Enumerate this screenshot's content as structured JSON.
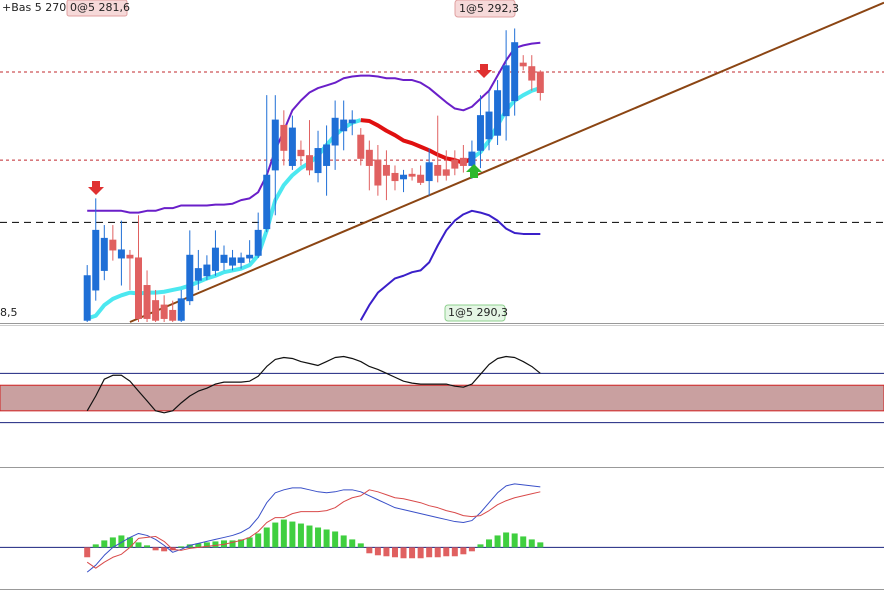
{
  "labels": [
    "+Bas 5 270,5",
    "0@5 281,6",
    "1@5 292,3",
    "1@5 290,3",
    "8,5"
  ],
  "chart_data": [
    {
      "type": "candlestick",
      "x": [
        0,
        1,
        2,
        3,
        4,
        5,
        6,
        7,
        8,
        9,
        10,
        11,
        12,
        13,
        14,
        15,
        16,
        17,
        18,
        19,
        20,
        21,
        22,
        23,
        24,
        25,
        26,
        27,
        28,
        29,
        30,
        31,
        32,
        33,
        34,
        35,
        36,
        37,
        38,
        39,
        40,
        41,
        42,
        43,
        44,
        45,
        46,
        47,
        48,
        49,
        50,
        51,
        52,
        53
      ],
      "open": [
        259.5,
        262.9,
        265.1,
        268.5,
        266.5,
        266.8,
        266.5,
        263.4,
        261.7,
        261.2,
        260.6,
        259.5,
        261.7,
        264.0,
        264.5,
        265.1,
        266.0,
        265.7,
        266.0,
        266.5,
        266.8,
        269.8,
        276.4,
        281.4,
        276.9,
        278.6,
        278.0,
        276.1,
        276.9,
        279.2,
        280.8,
        281.7,
        280.3,
        278.6,
        277.5,
        276.9,
        276.0,
        275.4,
        275.9,
        275.8,
        275.2,
        276.9,
        276.4,
        277.5,
        277.7,
        276.9,
        278.6,
        279.9,
        280.3,
        282.5,
        284.2,
        288.4,
        288.0,
        287.4
      ],
      "high": [
        265.7,
        273.2,
        270.2,
        270.2,
        270.7,
        267.4,
        271.3,
        265.1,
        262.9,
        262.3,
        261.7,
        262.9,
        269.6,
        267.4,
        266.8,
        269.6,
        267.9,
        267.4,
        267.1,
        268.5,
        271.6,
        284.8,
        284.8,
        283.1,
        282.5,
        279.7,
        282.0,
        280.8,
        281.4,
        284.2,
        284.2,
        283.1,
        281.1,
        279.7,
        279.2,
        278.6,
        276.9,
        276.4,
        276.6,
        276.9,
        278.8,
        282.5,
        278.6,
        278.6,
        279.2,
        279.7,
        284.8,
        285.3,
        286.5,
        292.1,
        292.3,
        289.3,
        289.3,
        287.6
      ],
      "low": [
        259.3,
        261.7,
        264.0,
        266.2,
        263.4,
        262.9,
        259.3,
        259.3,
        259.3,
        259.3,
        259.3,
        259.3,
        261.2,
        262.9,
        264.0,
        264.5,
        265.1,
        265.1,
        265.3,
        266.0,
        266.5,
        269.4,
        271.3,
        276.9,
        276.4,
        276.9,
        275.8,
        275.0,
        273.5,
        276.4,
        278.6,
        280.3,
        276.9,
        274.1,
        273.5,
        273.0,
        274.1,
        273.9,
        275.2,
        274.7,
        273.5,
        275.0,
        275.2,
        275.8,
        276.1,
        275.4,
        276.6,
        278.6,
        279.2,
        279.7,
        282.5,
        287.6,
        285.3,
        284.2
      ],
      "close": [
        264.5,
        269.6,
        268.7,
        267.4,
        267.4,
        266.5,
        259.7,
        259.7,
        259.5,
        259.7,
        259.5,
        261.9,
        266.8,
        265.3,
        265.7,
        267.6,
        266.8,
        266.5,
        266.5,
        266.8,
        269.6,
        275.8,
        282.0,
        278.6,
        281.1,
        278.0,
        276.4,
        278.8,
        279.2,
        282.2,
        282.0,
        282.0,
        277.7,
        276.9,
        274.7,
        275.8,
        275.2,
        275.8,
        275.7,
        275.0,
        277.2,
        275.8,
        275.8,
        276.6,
        276.9,
        278.4,
        282.5,
        282.9,
        285.3,
        288.1,
        290.7,
        288.1,
        286.5,
        285.1
      ],
      "up_color": "#1f6fd6",
      "down_color": "#e06060",
      "xlim": [
        -10.2,
        93.2
      ],
      "ylim": [
        259.3,
        295.5
      ],
      "series": [
        {
          "color": "#6a1fc9",
          "width": 2,
          "values": [
            271.8,
            271.8,
            271.8,
            271.8,
            271.8,
            271.6,
            271.6,
            271.8,
            271.8,
            272.1,
            272.1,
            272.4,
            272.4,
            272.4,
            272.4,
            272.5,
            272.5,
            272.6,
            273.0,
            273.2,
            273.9,
            275.8,
            278.6,
            280.8,
            283.1,
            284.2,
            285.1,
            285.6,
            285.9,
            286.2,
            286.7,
            286.9,
            287.0,
            287.0,
            286.9,
            286.7,
            286.7,
            286.5,
            286.5,
            286.2,
            285.6,
            284.8,
            284.0,
            283.3,
            283.1,
            283.5,
            284.4,
            285.3,
            287.0,
            288.7,
            290.1,
            290.4,
            290.6,
            290.7
          ]
        },
        {
          "color": "#3a1fc9",
          "width": 2,
          "values": [
            null,
            null,
            null,
            null,
            null,
            null,
            null,
            null,
            null,
            null,
            null,
            null,
            null,
            null,
            null,
            null,
            null,
            null,
            null,
            null,
            null,
            null,
            null,
            null,
            null,
            null,
            null,
            null,
            null,
            null,
            null,
            null,
            259.5,
            261.2,
            262.6,
            263.4,
            264.2,
            264.5,
            264.9,
            265.1,
            266.0,
            267.9,
            269.6,
            270.7,
            271.4,
            271.8,
            271.6,
            271.3,
            270.7,
            269.8,
            269.3,
            269.2,
            269.2,
            269.2
          ]
        },
        {
          "color": "#4ce8f0",
          "width": 4,
          "values": [
            259.7,
            260.0,
            261.2,
            261.9,
            262.3,
            262.6,
            262.5,
            262.6,
            262.6,
            262.7,
            262.9,
            263.1,
            263.4,
            263.8,
            264.2,
            264.5,
            264.9,
            265.1,
            265.3,
            265.7,
            266.8,
            269.6,
            273.0,
            274.7,
            275.8,
            276.6,
            277.2,
            278.0,
            279.2,
            280.3,
            281.1,
            281.7,
            282.0,
            null,
            null,
            null,
            null,
            null,
            null,
            null,
            null,
            null,
            null,
            null,
            null,
            277.7,
            278.4,
            279.7,
            281.4,
            283.1,
            284.2,
            284.8,
            285.3,
            285.6
          ]
        },
        {
          "color": "#e01010",
          "width": 4,
          "values": [
            null,
            null,
            null,
            null,
            null,
            null,
            null,
            null,
            null,
            null,
            null,
            null,
            null,
            null,
            null,
            null,
            null,
            null,
            null,
            null,
            null,
            null,
            null,
            null,
            null,
            null,
            null,
            null,
            null,
            null,
            null,
            null,
            282.0,
            281.9,
            281.4,
            280.8,
            280.3,
            279.7,
            279.4,
            279.0,
            278.6,
            278.1,
            277.7,
            277.5,
            277.2,
            277.7,
            null,
            null,
            null,
            null,
            null,
            null,
            null,
            null
          ]
        }
      ],
      "levels": [
        {
          "value": 287.4,
          "color": "#c0282d",
          "dash": "3,3"
        },
        {
          "value": 277.5,
          "color": "#c0282d",
          "dash": "3,3"
        },
        {
          "value": 270.5,
          "color": "#000000",
          "dash": "7,5"
        }
      ],
      "trendline": {
        "x": [
          5,
          93.2
        ],
        "values": [
          259.3,
          295.2
        ],
        "color": "#8b4513"
      }
    },
    {
      "type": "line",
      "x": [
        0,
        1,
        2,
        3,
        4,
        5,
        6,
        7,
        8,
        9,
        10,
        11,
        12,
        13,
        14,
        15,
        16,
        17,
        18,
        19,
        20,
        21,
        22,
        23,
        24,
        25,
        26,
        27,
        28,
        29,
        30,
        31,
        32,
        33,
        34,
        35,
        36,
        37,
        38,
        39,
        40,
        41,
        42,
        43,
        44,
        45,
        46,
        47,
        48,
        49,
        50,
        51,
        52,
        53
      ],
      "xlim": [
        -10.2,
        93.2
      ],
      "ylim": [
        0,
        100
      ],
      "series": [
        {
          "color": "#111111",
          "width": 1.2,
          "values": [
            39.4,
            50.0,
            62.0,
            64.8,
            64.8,
            60.6,
            53.5,
            46.5,
            39.4,
            38.0,
            39.4,
            45.1,
            50.0,
            53.5,
            55.6,
            58.5,
            59.9,
            59.9,
            59.9,
            60.6,
            64.1,
            71.1,
            76.1,
            77.5,
            76.8,
            74.6,
            73.2,
            71.8,
            74.6,
            77.5,
            78.2,
            76.8,
            74.6,
            71.1,
            69.0,
            66.2,
            63.4,
            60.6,
            59.2,
            58.5,
            58.5,
            58.5,
            58.5,
            57.0,
            56.3,
            58.5,
            65.5,
            72.5,
            76.8,
            78.2,
            77.5,
            74.6,
            71.1,
            66.2
          ]
        }
      ],
      "zone": [
        39.4,
        57.7
      ],
      "zone_color": "#c9a0a0",
      "zone_border": "#d02020",
      "levels": [
        31.0,
        66.2
      ],
      "level_color": "#1a237e"
    },
    {
      "type": "macd",
      "x": [
        0,
        1,
        2,
        3,
        4,
        5,
        6,
        7,
        8,
        9,
        10,
        11,
        12,
        13,
        14,
        15,
        16,
        17,
        18,
        19,
        20,
        21,
        22,
        23,
        24,
        25,
        26,
        27,
        28,
        29,
        30,
        31,
        32,
        33,
        34,
        35,
        36,
        37,
        38,
        39,
        40,
        41,
        42,
        43,
        44,
        45,
        46,
        47,
        48,
        49,
        50,
        51,
        52,
        53
      ],
      "xlim": [
        -10.2,
        93.2
      ],
      "ylim": [
        -42,
        80
      ],
      "histogram": {
        "up_color": "#3fcf3f",
        "down_color": "#e06060",
        "values": [
          -10,
          3,
          7,
          10,
          12,
          10,
          5,
          2,
          -3,
          -4,
          -3,
          1,
          3,
          4,
          5,
          6,
          7,
          7,
          8,
          10,
          14,
          20,
          25,
          28,
          26,
          24,
          22,
          20,
          18,
          16,
          12,
          8,
          4,
          -6,
          -8,
          -9,
          -10,
          -11,
          -11,
          -11,
          -10,
          -10,
          -9,
          -9,
          -7,
          -4,
          3,
          8,
          12,
          15,
          14,
          11,
          8,
          5
        ]
      },
      "series": [
        {
          "color": "#3a50c8",
          "width": 1,
          "values": [
            -25,
            -18,
            -8,
            0,
            5,
            10,
            14,
            12,
            8,
            2,
            -5,
            -2,
            2,
            4,
            6,
            8,
            10,
            12,
            15,
            20,
            30,
            45,
            55,
            58,
            60,
            60,
            58,
            56,
            55,
            56,
            58,
            58,
            56,
            52,
            48,
            44,
            40,
            38,
            36,
            34,
            32,
            30,
            28,
            26,
            25,
            27,
            35,
            45,
            55,
            62,
            64,
            63,
            62,
            61
          ]
        },
        {
          "color": "#d94a4a",
          "width": 1,
          "values": [
            -15,
            -21,
            -15,
            -10,
            -7,
            0,
            9,
            10,
            11,
            6,
            -2,
            -3,
            -1,
            0,
            1,
            2,
            3,
            5,
            7,
            10,
            16,
            25,
            30,
            30,
            34,
            36,
            36,
            36,
            37,
            40,
            46,
            50,
            52,
            58,
            56,
            53,
            50,
            49,
            47,
            45,
            42,
            40,
            37,
            35,
            32,
            31,
            32,
            37,
            43,
            47,
            50,
            52,
            54,
            56
          ]
        }
      ],
      "zero_color": "#1a237e"
    }
  ]
}
